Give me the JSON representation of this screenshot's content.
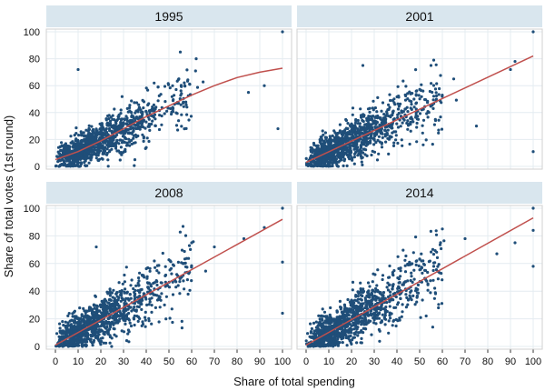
{
  "chart_data": {
    "type": "scatter",
    "xlabel": "Share of total spending",
    "ylabel": "Share of total votes (1st round)",
    "xlim": [
      0,
      100
    ],
    "ylim": [
      0,
      100
    ],
    "xticks": [
      0,
      10,
      20,
      30,
      40,
      50,
      60,
      70,
      80,
      90,
      100
    ],
    "yticks": [
      0,
      20,
      40,
      60,
      80,
      100
    ],
    "grid": true,
    "colors": {
      "points": "#1f4e79",
      "fit_line": "#c0504d",
      "strip": "#d9e6ee",
      "grid": "#e4ecf1"
    },
    "panels": [
      {
        "title": "1995",
        "fit": [
          [
            0,
            5
          ],
          [
            10,
            11
          ],
          [
            20,
            19
          ],
          [
            30,
            28
          ],
          [
            40,
            37
          ],
          [
            50,
            45
          ],
          [
            60,
            53
          ],
          [
            70,
            60
          ],
          [
            80,
            66
          ],
          [
            90,
            70
          ],
          [
            100,
            73
          ]
        ],
        "spread": 9,
        "outliers": [
          [
            100,
            100
          ],
          [
            10,
            72
          ],
          [
            55,
            85
          ],
          [
            62,
            80
          ],
          [
            85,
            55
          ],
          [
            92,
            60
          ],
          [
            98,
            28
          ],
          [
            40,
            14
          ],
          [
            35,
            5
          ]
        ]
      },
      {
        "title": "2001",
        "fit": [
          [
            0,
            3
          ],
          [
            100,
            82
          ]
        ],
        "spread": 10,
        "outliers": [
          [
            100,
            100
          ],
          [
            100,
            11
          ],
          [
            25,
            75
          ],
          [
            65,
            65
          ],
          [
            75,
            30
          ],
          [
            90,
            72
          ],
          [
            92,
            78
          ],
          [
            55,
            75
          ]
        ]
      },
      {
        "title": "2008",
        "fit": [
          [
            0,
            1
          ],
          [
            100,
            92
          ]
        ],
        "spread": 11,
        "outliers": [
          [
            100,
            100
          ],
          [
            100,
            61
          ],
          [
            100,
            24
          ],
          [
            18,
            72
          ],
          [
            60,
            75
          ],
          [
            70,
            72
          ],
          [
            83,
            78
          ],
          [
            92,
            86
          ]
        ]
      },
      {
        "title": "2014",
        "fit": [
          [
            0,
            1
          ],
          [
            100,
            93
          ]
        ],
        "spread": 11,
        "outliers": [
          [
            100,
            100
          ],
          [
            100,
            58
          ],
          [
            100,
            84
          ],
          [
            20,
            30
          ],
          [
            60,
            85
          ],
          [
            70,
            78
          ],
          [
            84,
            67
          ],
          [
            92,
            75
          ]
        ]
      }
    ]
  }
}
